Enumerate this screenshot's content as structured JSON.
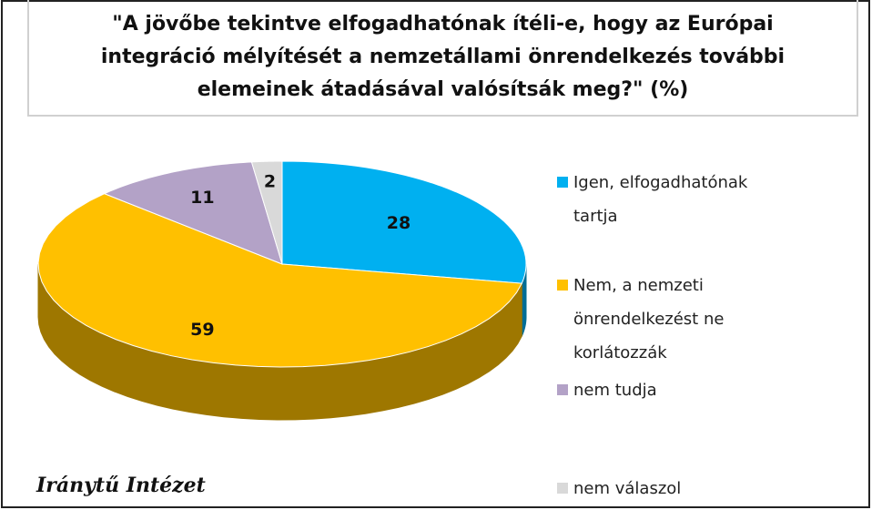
{
  "chart_data": {
    "type": "pie3d",
    "title": "\"A jövőbe tekintve elfogadhatónak ítéli-e, hogy az Európai integráció mélyítését a nemzetállami önrendelkezés további elemeinek átadásával valósítsák meg?\" (%)",
    "categories": [
      "Igen, elfogadhatónak tartja",
      "Nem, a nemzeti önrendelkezést ne korlátozzák",
      "nem tudja",
      "nem válaszol"
    ],
    "values": [
      28,
      59,
      11,
      2
    ],
    "colors": [
      "#00b0f0",
      "#ffc000",
      "#b3a2c7",
      "#d9d9d9"
    ],
    "source": "Iránytű Intézet"
  }
}
